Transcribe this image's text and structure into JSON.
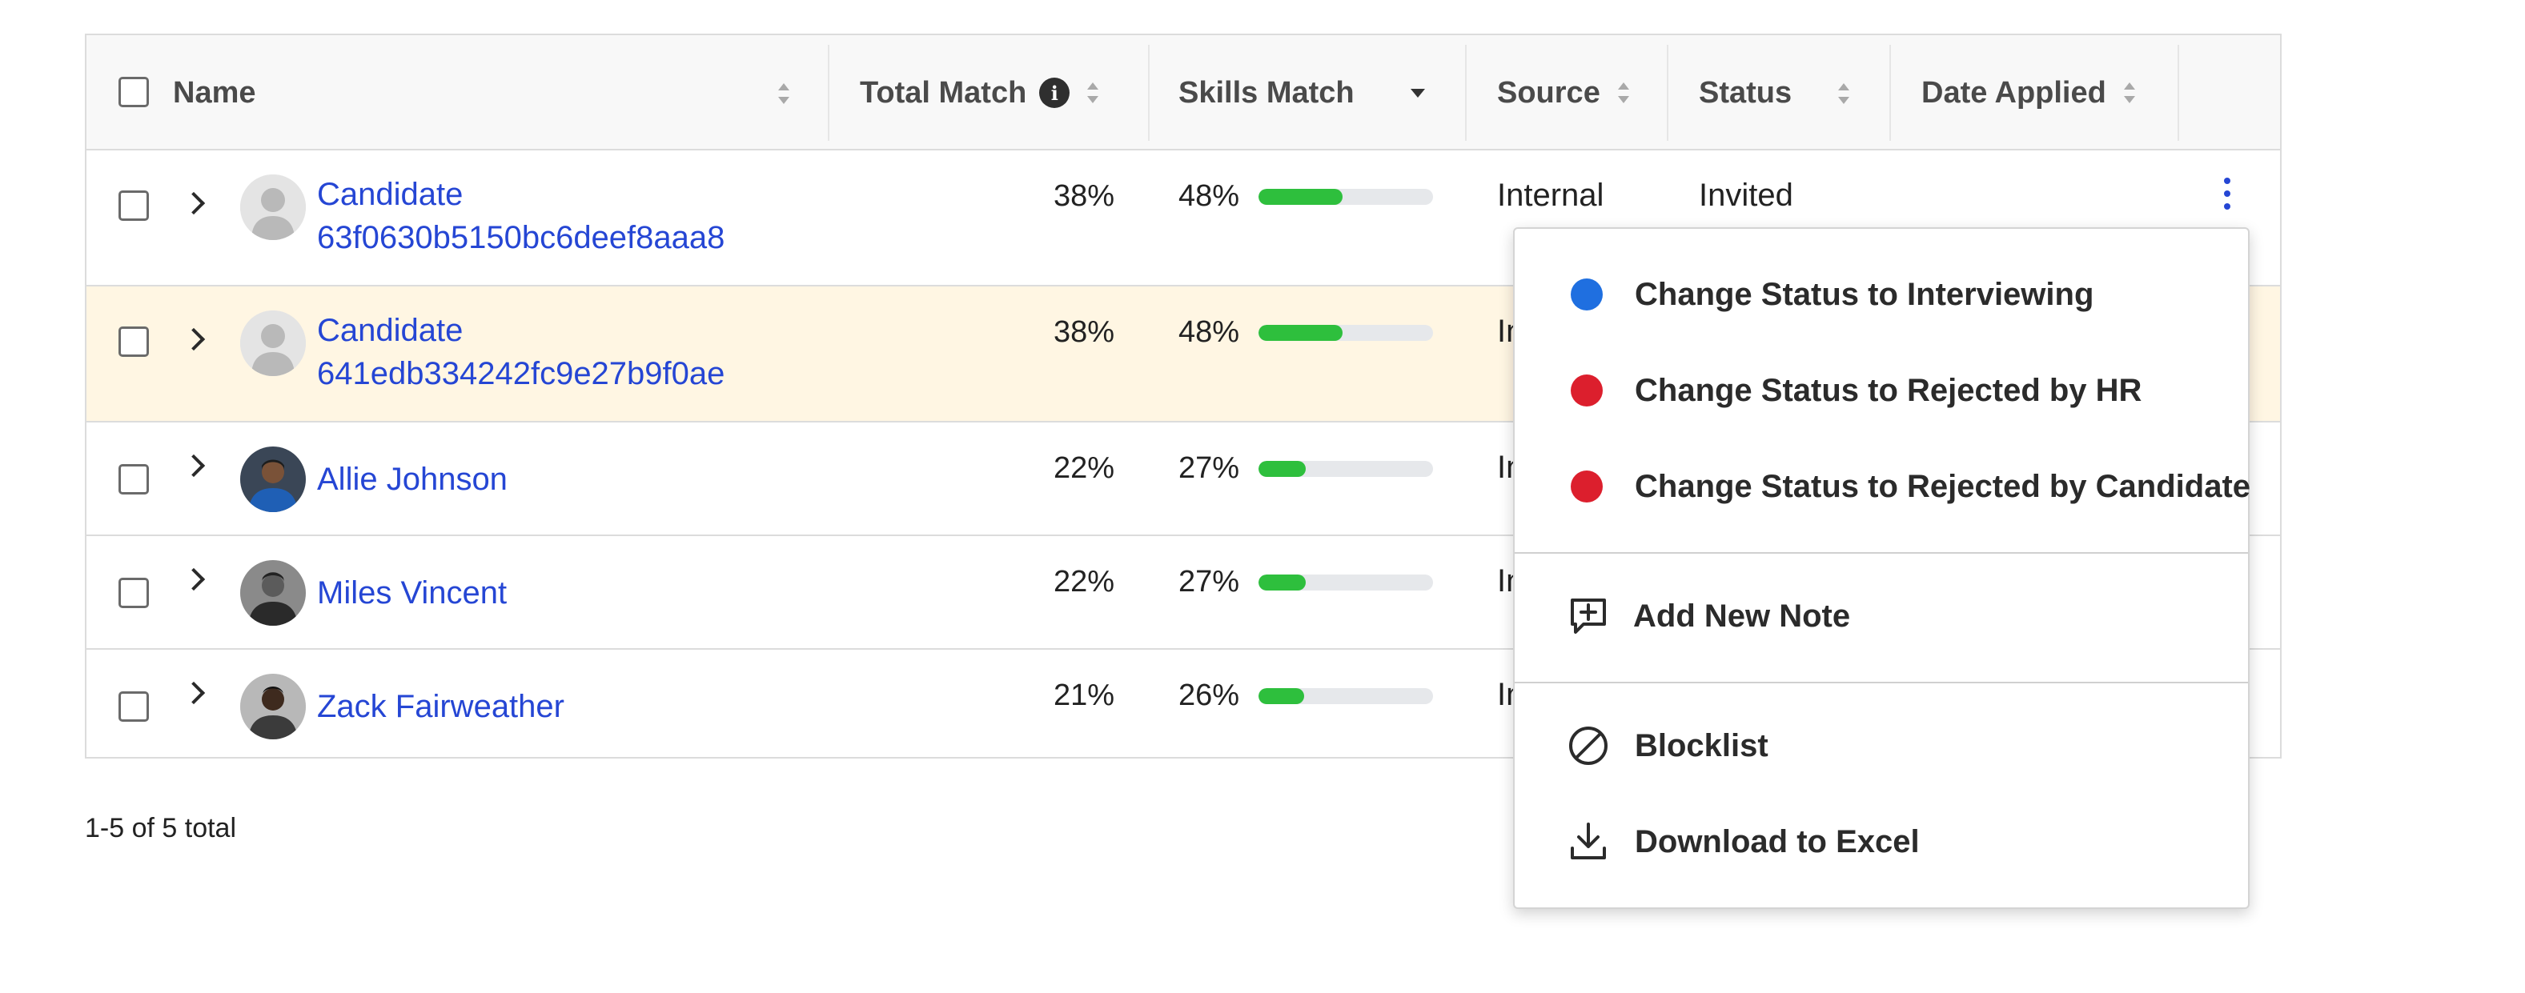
{
  "table": {
    "columns": [
      {
        "label": "Name"
      },
      {
        "label": "Total Match"
      },
      {
        "label": "Skills Match"
      },
      {
        "label": "Source"
      },
      {
        "label": "Status"
      },
      {
        "label": "Date Applied"
      }
    ],
    "info_icon_glyph": "i",
    "rows": [
      {
        "name_line1": "Candidate",
        "name_line2": "63f0630b5150bc6deef8aaa8",
        "total": "38%",
        "skills": "48%",
        "skills_fraction": 0.48,
        "source": "Internal",
        "status": "Invited",
        "avatar": "placeholder-person-icon"
      },
      {
        "name_line1": "Candidate",
        "name_line2": "641edb334242fc9e27b9f0ae",
        "total": "38%",
        "skills": "48%",
        "skills_fraction": 0.48,
        "source": "In",
        "status": "",
        "avatar": "placeholder-person-icon"
      },
      {
        "name_line1": "Allie Johnson",
        "name_line2": "",
        "total": "22%",
        "skills": "27%",
        "skills_fraction": 0.27,
        "source": "In",
        "status": "",
        "avatar": "photo"
      },
      {
        "name_line1": "Miles Vincent",
        "name_line2": "",
        "total": "22%",
        "skills": "27%",
        "skills_fraction": 0.27,
        "source": "In",
        "status": "",
        "avatar": "photo"
      },
      {
        "name_line1": "Zack Fairweather",
        "name_line2": "",
        "total": "21%",
        "skills": "26%",
        "skills_fraction": 0.26,
        "source": "In",
        "status": "",
        "avatar": "photo"
      }
    ]
  },
  "pagination": {
    "summary": "1-5 of 5 total"
  },
  "menu": {
    "status_items": [
      {
        "label": "Change Status to Interviewing",
        "color": "#1f6fe0"
      },
      {
        "label": "Change Status to Rejected by HR",
        "color": "#dc1f2d"
      },
      {
        "label": "Change Status to Rejected by Candidate",
        "color": "#dc1f2d"
      }
    ],
    "add_note": "Add New Note",
    "blocklist": "Blocklist",
    "download": "Download to Excel"
  },
  "colors": {
    "link": "#2546d4",
    "bar_fill": "#2ebf3d",
    "highlight_row": "#fff6e3"
  }
}
